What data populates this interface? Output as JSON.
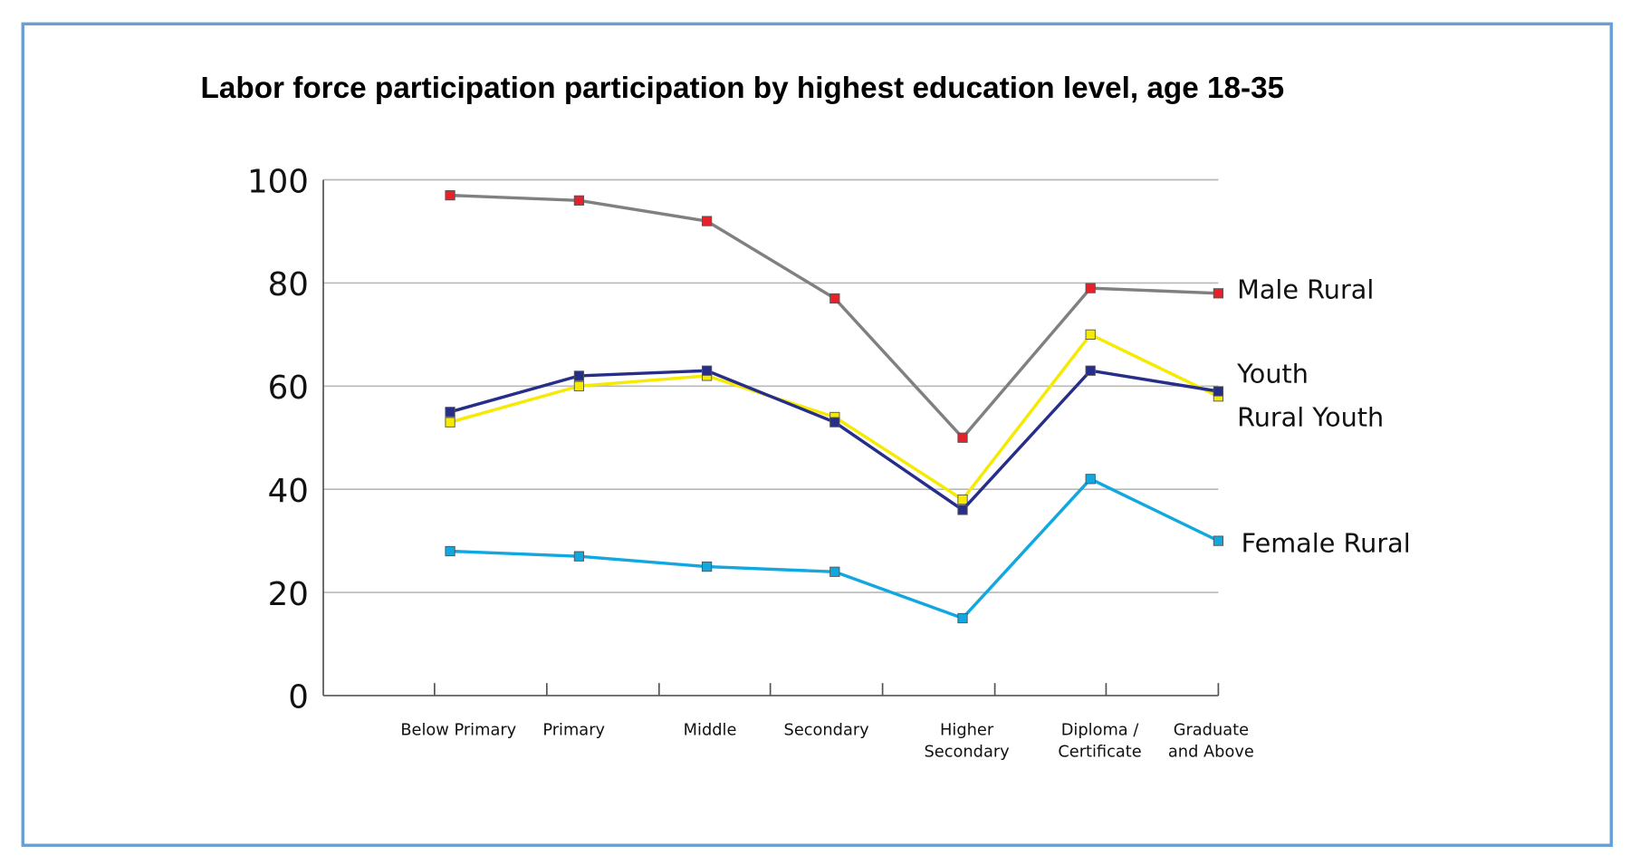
{
  "chart_data": {
    "type": "line",
    "title": "Labor force participation participation by highest education level, age 18-35",
    "xlabel": "",
    "ylabel": "",
    "ylim": [
      0,
      100
    ],
    "yticks": [
      0,
      20,
      40,
      60,
      80,
      100
    ],
    "grid": true,
    "legend": "direct labels at right end of lines",
    "categories": [
      [
        "Below Primary"
      ],
      [
        "Primary"
      ],
      [
        "Middle"
      ],
      [
        "Secondary"
      ],
      [
        "Higher",
        "Secondary"
      ],
      [
        "Diploma /",
        "Certificate"
      ],
      [
        "Graduate",
        "and Above"
      ]
    ],
    "series": [
      {
        "name": "Male Rural",
        "line_color": "#808080",
        "marker_color": "#e8202a",
        "values": [
          97,
          96,
          92,
          77,
          50,
          79,
          78
        ]
      },
      {
        "name": "Youth",
        "line_color": "#f5ea00",
        "marker_color": "#f5ea00",
        "values": [
          53,
          60,
          62,
          54,
          38,
          70,
          58
        ]
      },
      {
        "name": "Rural Youth",
        "line_color": "#262e8a",
        "marker_color": "#262e8a",
        "values": [
          55,
          62,
          63,
          53,
          36,
          63,
          59
        ]
      },
      {
        "name": "Female Rural",
        "line_color": "#11a8e0",
        "marker_color": "#11a8e0",
        "values": [
          28,
          27,
          25,
          24,
          15,
          42,
          30
        ]
      }
    ],
    "border_color": "#6a9fd4"
  }
}
